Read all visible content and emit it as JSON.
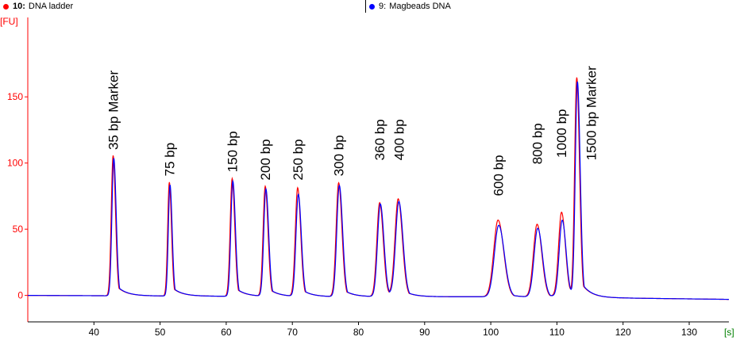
{
  "legend": [
    {
      "number": "10:",
      "name": "DNA ladder",
      "color": "#ff0000"
    },
    {
      "number": "9:",
      "name": "Magbeads DNA",
      "color": "#0000ff"
    }
  ],
  "chart_data": {
    "type": "line",
    "ylabel": "[FU]",
    "xlabel": "[s]",
    "xlim": [
      30,
      136
    ],
    "ylim": [
      -20,
      210
    ],
    "xticks": [
      40,
      50,
      60,
      70,
      80,
      90,
      100,
      110,
      120,
      130
    ],
    "yticks": [
      0,
      50,
      100,
      150
    ],
    "grid": false,
    "series": [
      {
        "name": "DNA ladder",
        "color": "#ff0000",
        "baseline": [
          [
            30,
            0
          ],
          [
            75,
            -1
          ],
          [
            100,
            -1
          ],
          [
            120,
            -2
          ],
          [
            136,
            -3
          ]
        ],
        "peaks": [
          {
            "x": 42.9,
            "height": 106,
            "width": 0.28
          },
          {
            "x": 51.4,
            "height": 86,
            "width": 0.25
          },
          {
            "x": 60.9,
            "height": 89,
            "width": 0.3
          },
          {
            "x": 65.9,
            "height": 83,
            "width": 0.32
          },
          {
            "x": 70.8,
            "height": 82,
            "width": 0.35
          },
          {
            "x": 77.0,
            "height": 86,
            "width": 0.38
          },
          {
            "x": 83.2,
            "height": 71,
            "width": 0.42
          },
          {
            "x": 86.0,
            "height": 73,
            "width": 0.48
          },
          {
            "x": 101.1,
            "height": 58,
            "width": 0.65
          },
          {
            "x": 107.0,
            "height": 55,
            "width": 0.55
          },
          {
            "x": 110.7,
            "height": 64,
            "width": 0.45
          },
          {
            "x": 113.0,
            "height": 165,
            "width": 0.32
          }
        ]
      },
      {
        "name": "Magbeads DNA",
        "color": "#0000ff",
        "baseline": [
          [
            30,
            0
          ],
          [
            75,
            -1
          ],
          [
            100,
            -1
          ],
          [
            120,
            -2
          ],
          [
            136,
            -3
          ]
        ],
        "peaks": [
          {
            "x": 43.0,
            "height": 104,
            "width": 0.28
          },
          {
            "x": 51.5,
            "height": 84,
            "width": 0.25
          },
          {
            "x": 61.0,
            "height": 87,
            "width": 0.3
          },
          {
            "x": 66.0,
            "height": 81,
            "width": 0.32
          },
          {
            "x": 70.9,
            "height": 77,
            "width": 0.35
          },
          {
            "x": 77.1,
            "height": 84,
            "width": 0.38
          },
          {
            "x": 83.3,
            "height": 70,
            "width": 0.42
          },
          {
            "x": 86.1,
            "height": 71,
            "width": 0.48
          },
          {
            "x": 101.2,
            "height": 54,
            "width": 0.65
          },
          {
            "x": 107.1,
            "height": 52,
            "width": 0.55
          },
          {
            "x": 110.8,
            "height": 58,
            "width": 0.45
          },
          {
            "x": 113.1,
            "height": 162,
            "width": 0.32
          }
        ]
      }
    ],
    "annotations": [
      {
        "text": "35 bp Marker",
        "x": 42.9,
        "y": 110
      },
      {
        "text": "75 bp",
        "x": 51.4,
        "y": 90
      },
      {
        "text": "150 bp",
        "x": 60.9,
        "y": 93
      },
      {
        "text": "200 bp",
        "x": 65.9,
        "y": 87
      },
      {
        "text": "250 bp",
        "x": 70.8,
        "y": 87
      },
      {
        "text": "300 bp",
        "x": 77.0,
        "y": 90
      },
      {
        "text": "360 bp",
        "x": 83.2,
        "y": 102
      },
      {
        "text": "400 bp",
        "x": 86.1,
        "y": 102
      },
      {
        "text": "600 bp",
        "x": 101.1,
        "y": 75
      },
      {
        "text": "800 bp",
        "x": 107.0,
        "y": 99
      },
      {
        "text": "1000 bp",
        "x": 110.7,
        "y": 104
      },
      {
        "text": "1500 bp Marker",
        "x": 115.2,
        "y": 102
      }
    ]
  }
}
